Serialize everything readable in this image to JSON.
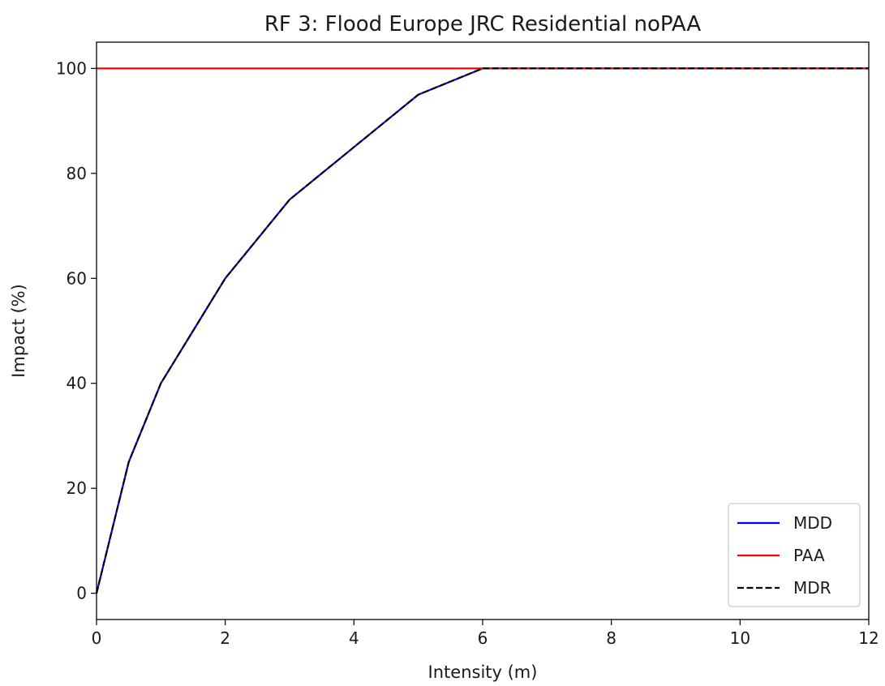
{
  "chart_data": {
    "type": "line",
    "title": "RF 3: Flood Europe JRC Residential noPAA",
    "xlabel": "Intensity (m)",
    "ylabel": "Impact (%)",
    "xlim": [
      0,
      12
    ],
    "ylim": [
      -5,
      105
    ],
    "xticks": [
      0,
      2,
      4,
      6,
      8,
      10,
      12
    ],
    "yticks": [
      0,
      20,
      40,
      60,
      80,
      100
    ],
    "grid": false,
    "legend_position": "lower-right",
    "series": [
      {
        "name": "MDD",
        "color": "#0000ff",
        "style": "solid",
        "x": [
          0,
          0.5,
          1,
          1.5,
          2,
          3,
          4,
          5,
          6,
          12
        ],
        "y": [
          0,
          25,
          40,
          50,
          60,
          75,
          85,
          95,
          100,
          100
        ]
      },
      {
        "name": "PAA",
        "color": "#ff0000",
        "style": "solid",
        "x": [
          0,
          12
        ],
        "y": [
          100,
          100
        ]
      },
      {
        "name": "MDR",
        "color": "#000000",
        "style": "dashed",
        "x": [
          0,
          0.5,
          1,
          1.5,
          2,
          3,
          4,
          5,
          6,
          12
        ],
        "y": [
          0,
          25,
          40,
          50,
          60,
          75,
          85,
          95,
          100,
          100
        ]
      }
    ]
  }
}
